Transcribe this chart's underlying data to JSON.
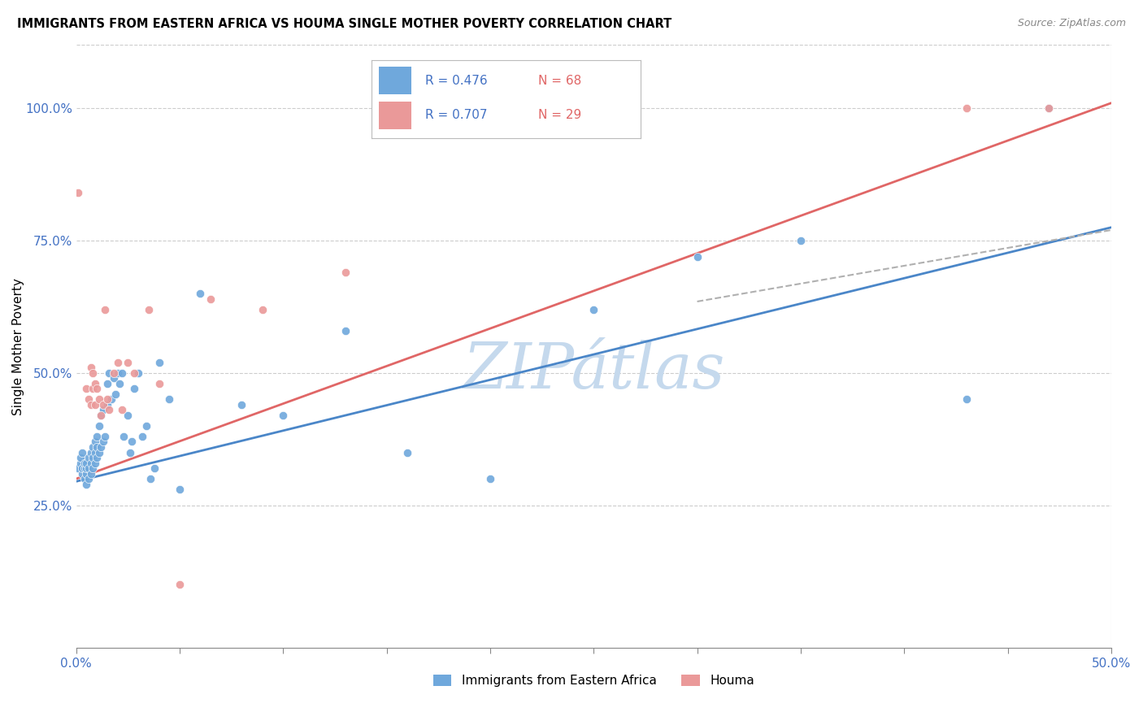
{
  "title": "IMMIGRANTS FROM EASTERN AFRICA VS HOUMA SINGLE MOTHER POVERTY CORRELATION CHART",
  "source": "Source: ZipAtlas.com",
  "ylabel": "Single Mother Poverty",
  "xlim": [
    0.0,
    0.5
  ],
  "ylim": [
    -0.02,
    1.12
  ],
  "y_ticks": [
    0.25,
    0.5,
    0.75,
    1.0
  ],
  "y_tick_labels": [
    "25.0%",
    "50.0%",
    "75.0%",
    "100.0%"
  ],
  "x_ticks": [
    0.0,
    0.05,
    0.1,
    0.15,
    0.2,
    0.25,
    0.3,
    0.35,
    0.4,
    0.45,
    0.5
  ],
  "legend1_R": "0.476",
  "legend1_N": "68",
  "legend2_R": "0.707",
  "legend2_N": "29",
  "blue_color": "#6fa8dc",
  "pink_color": "#ea9999",
  "blue_line_color": "#4a86c8",
  "pink_line_color": "#e06666",
  "dashed_line_color": "#b0b0b0",
  "watermark_color": "#c5d9ed",
  "blue_scatter_x": [
    0.001,
    0.002,
    0.002,
    0.003,
    0.003,
    0.003,
    0.004,
    0.004,
    0.004,
    0.005,
    0.005,
    0.005,
    0.005,
    0.006,
    0.006,
    0.006,
    0.007,
    0.007,
    0.007,
    0.008,
    0.008,
    0.008,
    0.009,
    0.009,
    0.009,
    0.01,
    0.01,
    0.01,
    0.011,
    0.011,
    0.012,
    0.012,
    0.013,
    0.013,
    0.014,
    0.015,
    0.015,
    0.016,
    0.017,
    0.018,
    0.019,
    0.02,
    0.021,
    0.022,
    0.023,
    0.025,
    0.026,
    0.027,
    0.028,
    0.03,
    0.032,
    0.034,
    0.036,
    0.038,
    0.04,
    0.045,
    0.05,
    0.06,
    0.08,
    0.1,
    0.13,
    0.16,
    0.2,
    0.25,
    0.3,
    0.35,
    0.43,
    0.47
  ],
  "blue_scatter_y": [
    0.32,
    0.33,
    0.34,
    0.31,
    0.32,
    0.35,
    0.3,
    0.32,
    0.33,
    0.29,
    0.31,
    0.32,
    0.33,
    0.3,
    0.32,
    0.34,
    0.31,
    0.33,
    0.35,
    0.32,
    0.34,
    0.36,
    0.33,
    0.35,
    0.37,
    0.34,
    0.36,
    0.38,
    0.35,
    0.4,
    0.36,
    0.42,
    0.37,
    0.43,
    0.38,
    0.44,
    0.48,
    0.5,
    0.45,
    0.49,
    0.46,
    0.5,
    0.48,
    0.5,
    0.38,
    0.42,
    0.35,
    0.37,
    0.47,
    0.5,
    0.38,
    0.4,
    0.3,
    0.32,
    0.52,
    0.45,
    0.28,
    0.65,
    0.44,
    0.42,
    0.58,
    0.35,
    0.3,
    0.62,
    0.72,
    0.75,
    0.45,
    1.0
  ],
  "pink_scatter_x": [
    0.001,
    0.005,
    0.006,
    0.007,
    0.007,
    0.008,
    0.008,
    0.009,
    0.009,
    0.01,
    0.011,
    0.012,
    0.013,
    0.014,
    0.015,
    0.016,
    0.018,
    0.02,
    0.022,
    0.025,
    0.028,
    0.035,
    0.04,
    0.05,
    0.065,
    0.09,
    0.13,
    0.43,
    0.47
  ],
  "pink_scatter_y": [
    0.84,
    0.47,
    0.45,
    0.44,
    0.51,
    0.47,
    0.5,
    0.44,
    0.48,
    0.47,
    0.45,
    0.42,
    0.44,
    0.62,
    0.45,
    0.43,
    0.5,
    0.52,
    0.43,
    0.52,
    0.5,
    0.62,
    0.48,
    0.1,
    0.64,
    0.62,
    0.69,
    1.0,
    1.0
  ],
  "blue_line_x": [
    0.0,
    0.5
  ],
  "blue_line_y": [
    0.295,
    0.775
  ],
  "pink_line_x": [
    0.0,
    0.5
  ],
  "pink_line_y": [
    0.3,
    1.01
  ],
  "dashed_line_x": [
    0.3,
    0.5
  ],
  "dashed_line_y": [
    0.635,
    0.77
  ],
  "figsize": [
    14.06,
    8.92
  ],
  "dpi": 100
}
